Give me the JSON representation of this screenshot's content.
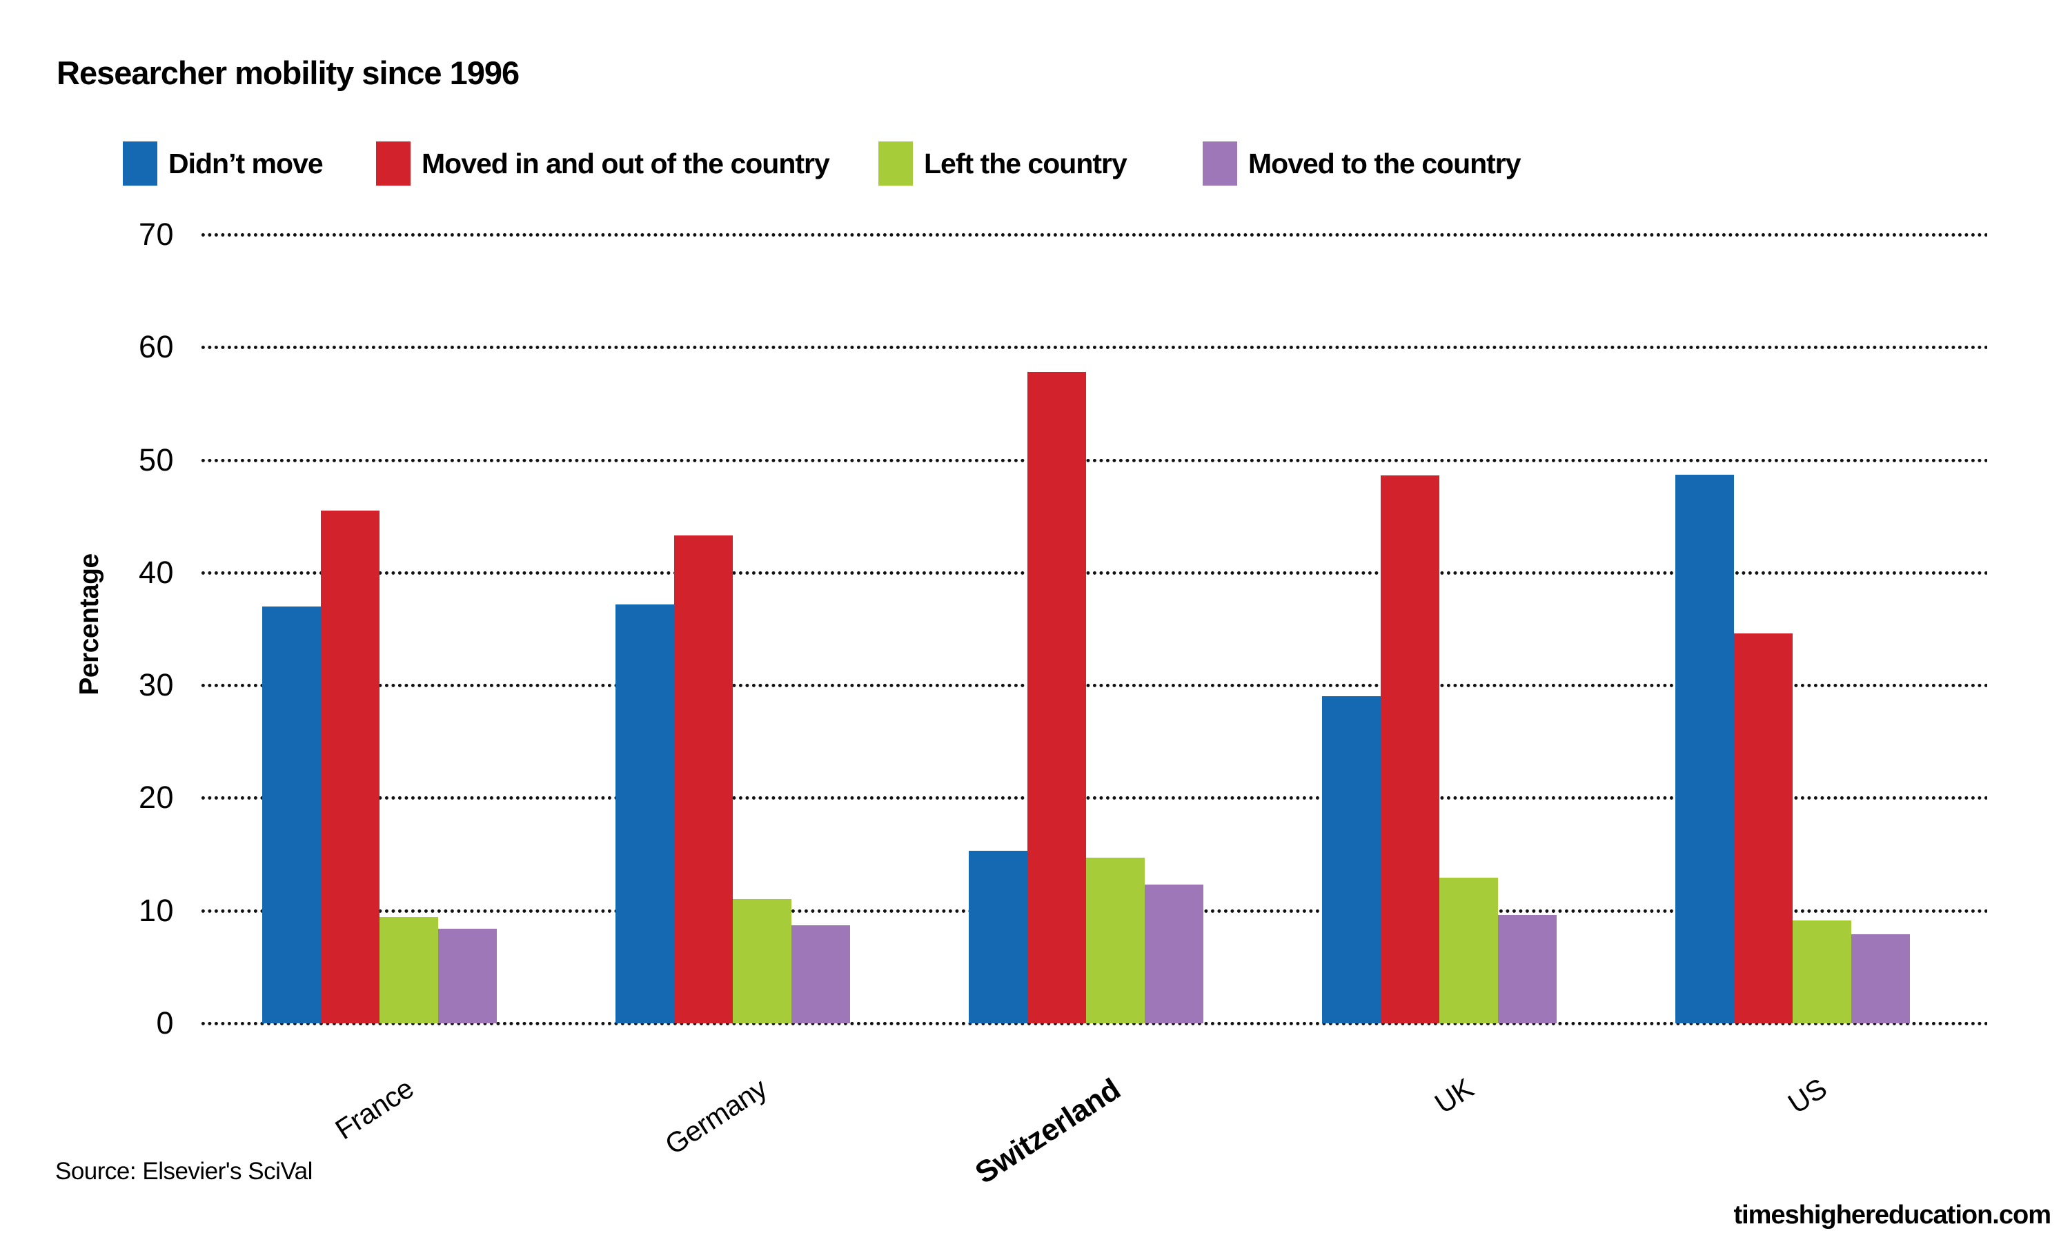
{
  "title": "Researcher mobility since 1996",
  "chart_data": {
    "type": "bar",
    "categories": [
      "France",
      "Germany",
      "Switzerland",
      "UK",
      "US"
    ],
    "highlight_category": "Switzerland",
    "series": [
      {
        "name": "Didn’t move",
        "color": "#1569b3",
        "values": [
          37.0,
          37.2,
          15.3,
          29.0,
          48.7
        ]
      },
      {
        "name": "Moved in and out of the country",
        "color": "#d2232c",
        "values": [
          45.5,
          43.3,
          57.8,
          48.6,
          34.6
        ]
      },
      {
        "name": "Left the country",
        "color": "#a6cc39",
        "values": [
          9.4,
          11.0,
          14.7,
          12.9,
          9.1
        ]
      },
      {
        "name": "Moved to the country",
        "color": "#9d77b7",
        "values": [
          8.4,
          8.7,
          12.3,
          9.6,
          7.9
        ]
      }
    ],
    "xlabel": "",
    "ylabel": "Percentage",
    "y_ticks": [
      0,
      10,
      20,
      30,
      40,
      50,
      60,
      70
    ],
    "ylim": [
      0,
      70
    ],
    "grid": "horizontal-dotted",
    "legend_position": "top"
  },
  "source": "Source: Elsevier's SciVal",
  "website": "timeshighereducation.com"
}
